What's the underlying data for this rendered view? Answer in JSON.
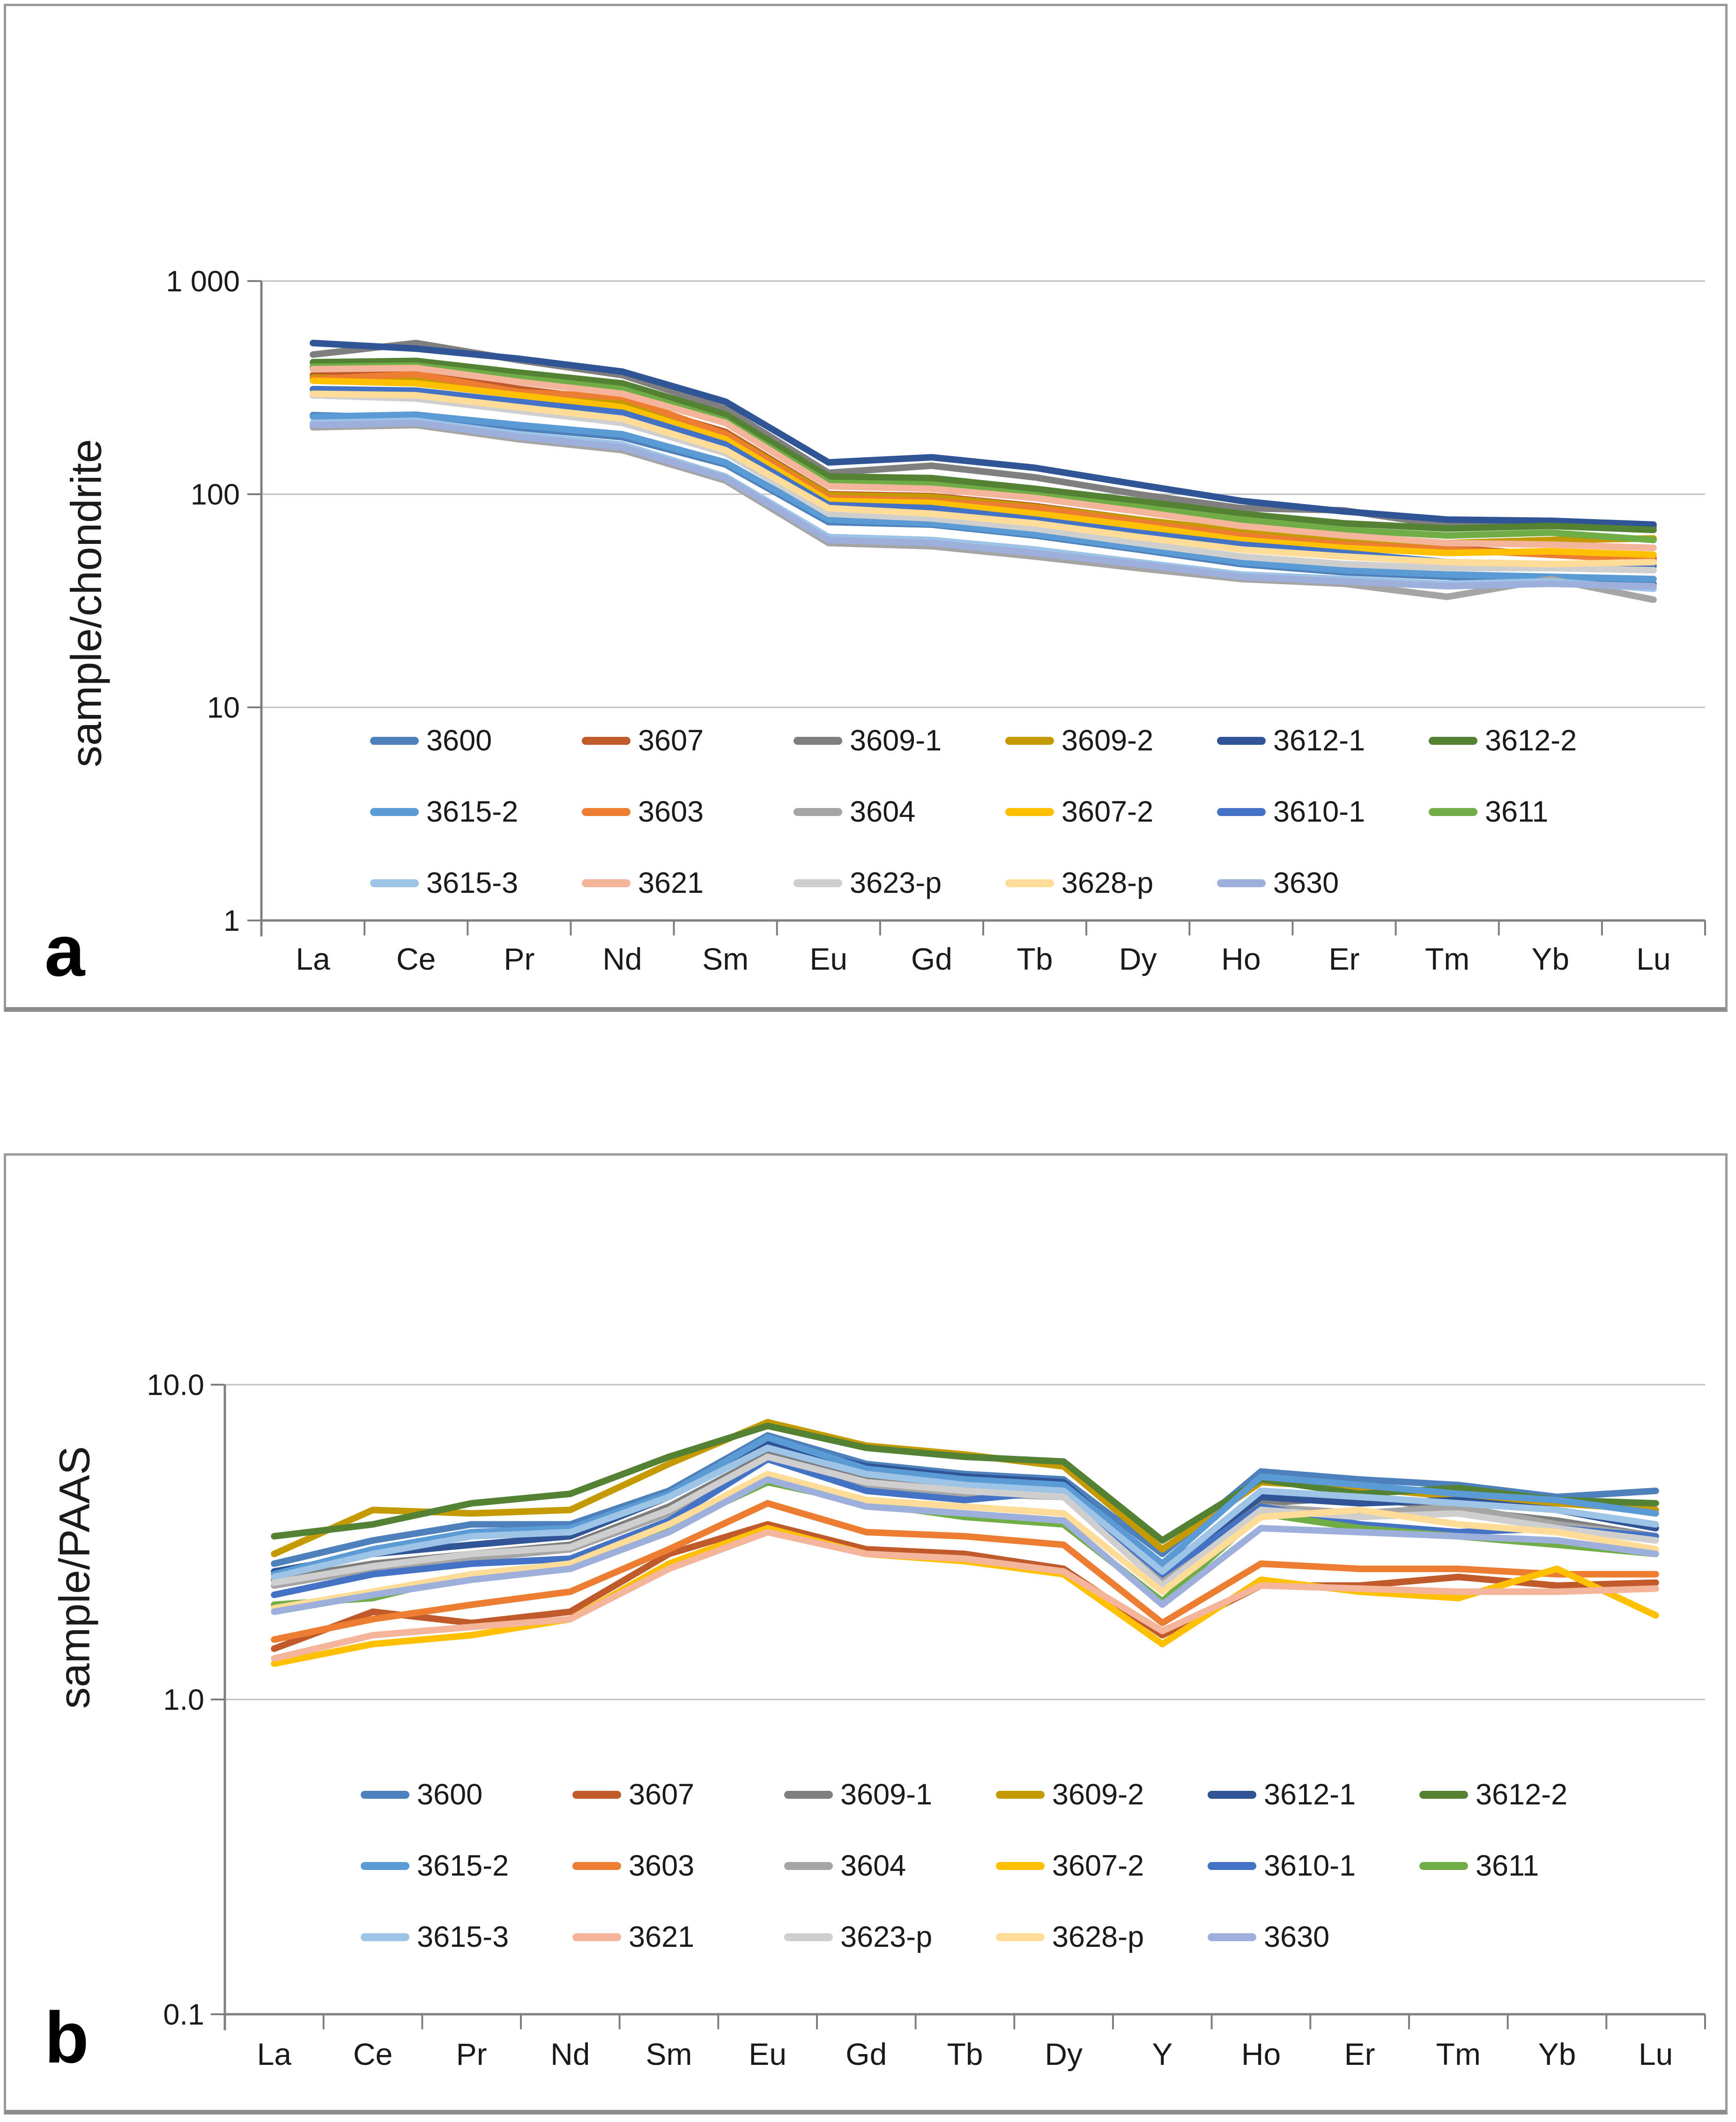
{
  "figure": {
    "panel_a_label": "a",
    "panel_b_label": "b"
  },
  "chart_data": [
    {
      "type": "line",
      "panel_label": "a",
      "ylabel": "sample/chondrite",
      "xlabel": "",
      "y_scale": "log",
      "ylim": [
        1,
        1000
      ],
      "y_ticks": [
        {
          "label": "1 000",
          "value": 1000
        },
        {
          "label": "100",
          "value": 100
        },
        {
          "label": "10",
          "value": 10
        },
        {
          "label": "1",
          "value": 1
        }
      ],
      "grid": "horizontal-only",
      "legend_position": "inside-bottom",
      "categories": [
        "La",
        "Ce",
        "Pr",
        "Nd",
        "Sm",
        "Eu",
        "Gd",
        "Tb",
        "Dy",
        "Ho",
        "Er",
        "Tm",
        "Yb",
        "Lu"
      ],
      "series": [
        {
          "name": "3600",
          "color": "#4E80BC",
          "values": [
            235,
            228,
            205,
            185,
            138,
            74,
            72,
            64,
            55,
            47,
            43,
            41,
            39,
            38
          ]
        },
        {
          "name": "3607",
          "color": "#C05A2A",
          "values": [
            362,
            372,
            312,
            272,
            196,
            100,
            98,
            88,
            76,
            66,
            60,
            56,
            52,
            50
          ]
        },
        {
          "name": "3609-1",
          "color": "#7F7F7F",
          "values": [
            452,
            512,
            425,
            362,
            252,
            126,
            136,
            120,
            100,
            86,
            84,
            71,
            73,
            70
          ]
        },
        {
          "name": "3609-2",
          "color": "#C49A00",
          "values": [
            352,
            346,
            302,
            266,
            192,
            99,
            97,
            87,
            76,
            67,
            62,
            59,
            61,
            62
          ]
        },
        {
          "name": "3612-1",
          "color": "#2F5597",
          "values": [
            512,
            482,
            432,
            376,
            272,
            141,
            149,
            133,
            111,
            93,
            83,
            76,
            75,
            72
          ]
        },
        {
          "name": "3612-2",
          "color": "#548235",
          "values": [
            416,
            422,
            372,
            331,
            237,
            121,
            119,
            106,
            93,
            81,
            73,
            69,
            71,
            68
          ]
        },
        {
          "name": "3615-2",
          "color": "#5B9BD5",
          "values": [
            231,
            236,
            211,
            191,
            141,
            76,
            73,
            65,
            56,
            48,
            44,
            42,
            41,
            40
          ]
        },
        {
          "name": "3603",
          "color": "#ED7D31",
          "values": [
            346,
            366,
            301,
            286,
            191,
            96,
            93,
            86,
            74,
            64,
            58,
            55,
            52,
            49
          ]
        },
        {
          "name": "3604",
          "color": "#A5A5A5",
          "values": [
            206,
            211,
            181,
            161,
            116,
            59,
            57,
            51,
            45,
            40,
            38,
            33,
            40,
            32
          ]
        },
        {
          "name": "3607-2",
          "color": "#FFC000",
          "values": [
            341,
            331,
            291,
            256,
            181,
            93,
            91,
            81,
            71,
            61,
            56,
            53,
            54,
            52
          ]
        },
        {
          "name": "3610-1",
          "color": "#4472C4",
          "values": [
            311,
            306,
            271,
            241,
            171,
            89,
            86,
            76,
            66,
            58,
            53,
            48,
            47,
            46
          ]
        },
        {
          "name": "3611",
          "color": "#70AD47",
          "values": [
            396,
            401,
            351,
            311,
            221,
            113,
            111,
            99,
            87,
            76,
            68,
            64,
            66,
            61
          ]
        },
        {
          "name": "3615-3",
          "color": "#9DC3E6",
          "values": [
            216,
            221,
            191,
            171,
            121,
            63,
            61,
            55,
            48,
            42,
            40,
            38,
            39,
            36
          ]
        },
        {
          "name": "3621",
          "color": "#F4B59B",
          "values": [
            386,
            391,
            336,
            296,
            216,
            109,
            106,
            96,
            83,
            71,
            64,
            59,
            58,
            56
          ]
        },
        {
          "name": "3623-p",
          "color": "#CFCFCF",
          "values": [
            291,
            281,
            246,
            216,
            156,
            81,
            77,
            69,
            59,
            51,
            47,
            45,
            45,
            44
          ]
        },
        {
          "name": "3628-p",
          "color": "#FFDD99",
          "values": [
            296,
            291,
            256,
            226,
            161,
            86,
            81,
            73,
            63,
            55,
            51,
            48,
            47,
            48
          ]
        },
        {
          "name": "3630",
          "color": "#9DAFDB",
          "values": [
            211,
            216,
            186,
            166,
            119,
            61,
            59,
            53,
            47,
            41,
            39,
            37,
            38,
            37
          ]
        }
      ],
      "legend_rows": [
        [
          "3600",
          "3607",
          "3609-1",
          "3609-2",
          "3612-1",
          "3612-2"
        ],
        [
          "3615-2",
          "3603",
          "3604",
          "3607-2",
          "3610-1",
          "3611"
        ],
        [
          "3615-3",
          "3621",
          "3623-p",
          "3628-p",
          "3630"
        ]
      ]
    },
    {
      "type": "line",
      "panel_label": "b",
      "ylabel": "sample/PAAS",
      "xlabel": "",
      "y_scale": "log",
      "ylim": [
        0.1,
        10
      ],
      "y_ticks": [
        {
          "label": "10.0",
          "value": 10
        },
        {
          "label": "1.0",
          "value": 1
        },
        {
          "label": "0.1",
          "value": 0.1
        }
      ],
      "grid": "horizontal-only",
      "legend_position": "inside-bottom",
      "categories": [
        "La",
        "Ce",
        "Pr",
        "Nd",
        "Sm",
        "Eu",
        "Gd",
        "Tb",
        "Dy",
        "Y",
        "Ho",
        "Er",
        "Tm",
        "Yb",
        "Lu"
      ],
      "series": [
        {
          "name": "3600",
          "color": "#4E80BC",
          "values": [
            2.7,
            3.2,
            3.6,
            3.6,
            4.6,
            6.9,
            5.6,
            5.2,
            5.0,
            2.9,
            5.3,
            5.0,
            4.8,
            4.4,
            4.6
          ]
        },
        {
          "name": "3607",
          "color": "#C05A2A",
          "values": [
            1.45,
            1.9,
            1.75,
            1.9,
            2.9,
            3.6,
            3.0,
            2.9,
            2.6,
            1.6,
            2.3,
            2.3,
            2.45,
            2.3,
            2.35
          ]
        },
        {
          "name": "3609-1",
          "color": "#7F7F7F",
          "values": [
            2.4,
            2.7,
            2.9,
            3.1,
            4.1,
            6.0,
            5.0,
            4.7,
            4.5,
            2.4,
            4.2,
            4.4,
            4.0,
            3.7,
            3.3
          ]
        },
        {
          "name": "3609-2",
          "color": "#C49A00",
          "values": [
            2.9,
            4.0,
            3.9,
            4.0,
            5.6,
            7.6,
            6.4,
            6.0,
            5.5,
            3.0,
            4.9,
            4.7,
            4.4,
            4.2,
            4.0
          ]
        },
        {
          "name": "3612-1",
          "color": "#2F5597",
          "values": [
            2.55,
            2.9,
            3.1,
            3.3,
            4.4,
            6.5,
            5.5,
            5.1,
            4.9,
            2.6,
            4.4,
            4.2,
            4.3,
            4.0,
            3.5
          ]
        },
        {
          "name": "3612-2",
          "color": "#548235",
          "values": [
            3.3,
            3.6,
            4.2,
            4.5,
            5.9,
            7.4,
            6.3,
            5.9,
            5.7,
            3.2,
            5.0,
            4.5,
            4.7,
            4.3,
            4.2
          ]
        },
        {
          "name": "3615-2",
          "color": "#5B9BD5",
          "values": [
            2.5,
            3.0,
            3.4,
            3.5,
            4.5,
            6.8,
            5.4,
            5.0,
            4.8,
            2.7,
            5.1,
            4.8,
            4.5,
            4.3,
            3.9
          ]
        },
        {
          "name": "3603",
          "color": "#ED7D31",
          "values": [
            1.55,
            1.8,
            2.0,
            2.2,
            3.0,
            4.2,
            3.4,
            3.3,
            3.1,
            1.75,
            2.7,
            2.6,
            2.6,
            2.5,
            2.5
          ]
        },
        {
          "name": "3604",
          "color": "#A5A5A5",
          "values": [
            2.3,
            2.6,
            2.8,
            3.0,
            3.9,
            5.8,
            4.8,
            4.5,
            4.4,
            2.35,
            4.1,
            3.9,
            4.1,
            3.6,
            3.3
          ]
        },
        {
          "name": "3607-2",
          "color": "#FFC000",
          "values": [
            1.3,
            1.5,
            1.6,
            1.8,
            2.7,
            3.5,
            2.9,
            2.75,
            2.5,
            1.5,
            2.4,
            2.2,
            2.1,
            2.6,
            1.85
          ]
        },
        {
          "name": "3610-1",
          "color": "#4472C4",
          "values": [
            2.15,
            2.5,
            2.7,
            2.8,
            3.7,
            5.8,
            4.6,
            4.3,
            4.6,
            2.5,
            4.1,
            3.6,
            3.4,
            3.5,
            3.3
          ]
        },
        {
          "name": "3611",
          "color": "#70AD47",
          "values": [
            2.0,
            2.1,
            2.5,
            2.6,
            3.5,
            4.9,
            4.2,
            3.8,
            3.6,
            2.05,
            3.9,
            3.5,
            3.3,
            3.1,
            2.9
          ]
        },
        {
          "name": "3615-3",
          "color": "#9DC3E6",
          "values": [
            2.45,
            2.9,
            3.3,
            3.4,
            4.4,
            6.3,
            5.2,
            4.8,
            4.6,
            2.55,
            4.6,
            4.4,
            4.2,
            4.0,
            3.6
          ]
        },
        {
          "name": "3621",
          "color": "#F4B59B",
          "values": [
            1.35,
            1.6,
            1.7,
            1.8,
            2.6,
            3.4,
            2.9,
            2.8,
            2.55,
            1.65,
            2.3,
            2.25,
            2.2,
            2.2,
            2.25
          ]
        },
        {
          "name": "3623-p",
          "color": "#CFCFCF",
          "values": [
            2.35,
            2.65,
            2.9,
            3.05,
            4.0,
            5.9,
            4.9,
            4.6,
            4.4,
            2.3,
            4.0,
            3.8,
            3.9,
            3.5,
            3.2
          ]
        },
        {
          "name": "3628-p",
          "color": "#FFDD99",
          "values": [
            1.95,
            2.2,
            2.5,
            2.7,
            3.6,
            5.2,
            4.3,
            4.1,
            3.9,
            2.2,
            3.8,
            4.0,
            3.6,
            3.4,
            3.0
          ]
        },
        {
          "name": "3630",
          "color": "#9DAFDB",
          "values": [
            1.9,
            2.15,
            2.4,
            2.6,
            3.4,
            5.0,
            4.1,
            3.9,
            3.7,
            2.0,
            3.5,
            3.4,
            3.3,
            3.2,
            2.9
          ]
        }
      ],
      "legend_rows": [
        [
          "3600",
          "3607",
          "3609-1",
          "3609-2",
          "3612-1",
          "3612-2"
        ],
        [
          "3615-2",
          "3603",
          "3604",
          "3607-2",
          "3610-1",
          "3611"
        ],
        [
          "3615-3",
          "3621",
          "3623-p",
          "3628-p",
          "3630"
        ]
      ]
    }
  ]
}
